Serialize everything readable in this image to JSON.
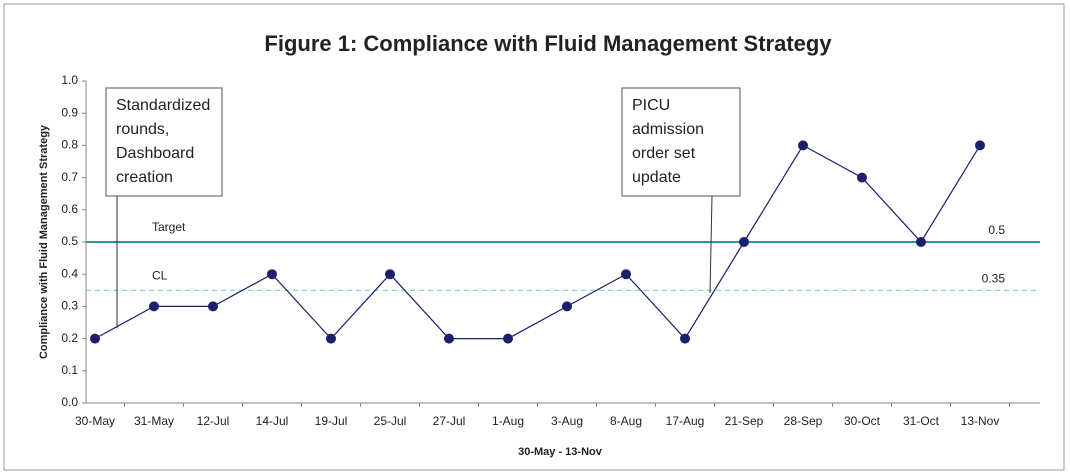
{
  "chart_data": {
    "type": "line",
    "title": "Figure 1: Compliance with Fluid Management Strategy",
    "x_label": "30-May - 13-Nov",
    "y_label": "Compliance with Fluid Management Strategy",
    "categories": [
      "30-May",
      "31-May",
      "12-Jul",
      "14-Jul",
      "19-Jul",
      "25-Jul",
      "27-Jul",
      "1-Aug",
      "3-Aug",
      "8-Aug",
      "17-Aug",
      "21-Sep",
      "28-Sep",
      "30-Oct",
      "31-Oct",
      "13-Nov"
    ],
    "values": [
      0.2,
      0.3,
      0.3,
      0.4,
      0.2,
      0.4,
      0.2,
      0.2,
      0.3,
      0.4,
      0.2,
      0.5,
      0.8,
      0.7,
      0.5,
      0.8
    ],
    "color": "#1c1f6b",
    "ylim": [
      0,
      1
    ],
    "yticks": [
      {
        "value": 0,
        "label": "0.0"
      },
      0.1,
      0.2,
      0.3,
      0.4,
      0.5,
      0.6,
      0.7,
      0.8,
      0.9,
      {
        "value": 1,
        "label": "1.0"
      }
    ],
    "grid": false,
    "reference_lines": [
      {
        "label": "Target",
        "value": 0.5,
        "color": "#2a9d8f",
        "style": "solid"
      },
      {
        "label": "CL",
        "value": 0.35,
        "color": "#7fcfc4",
        "style": "dashed"
      }
    ],
    "annotations": [
      {
        "lines": [
          "Standardized",
          "rounds,",
          "Dashboard",
          "creation"
        ]
      },
      {
        "lines": [
          "PICU",
          "admission",
          "order set",
          "update"
        ]
      }
    ]
  }
}
